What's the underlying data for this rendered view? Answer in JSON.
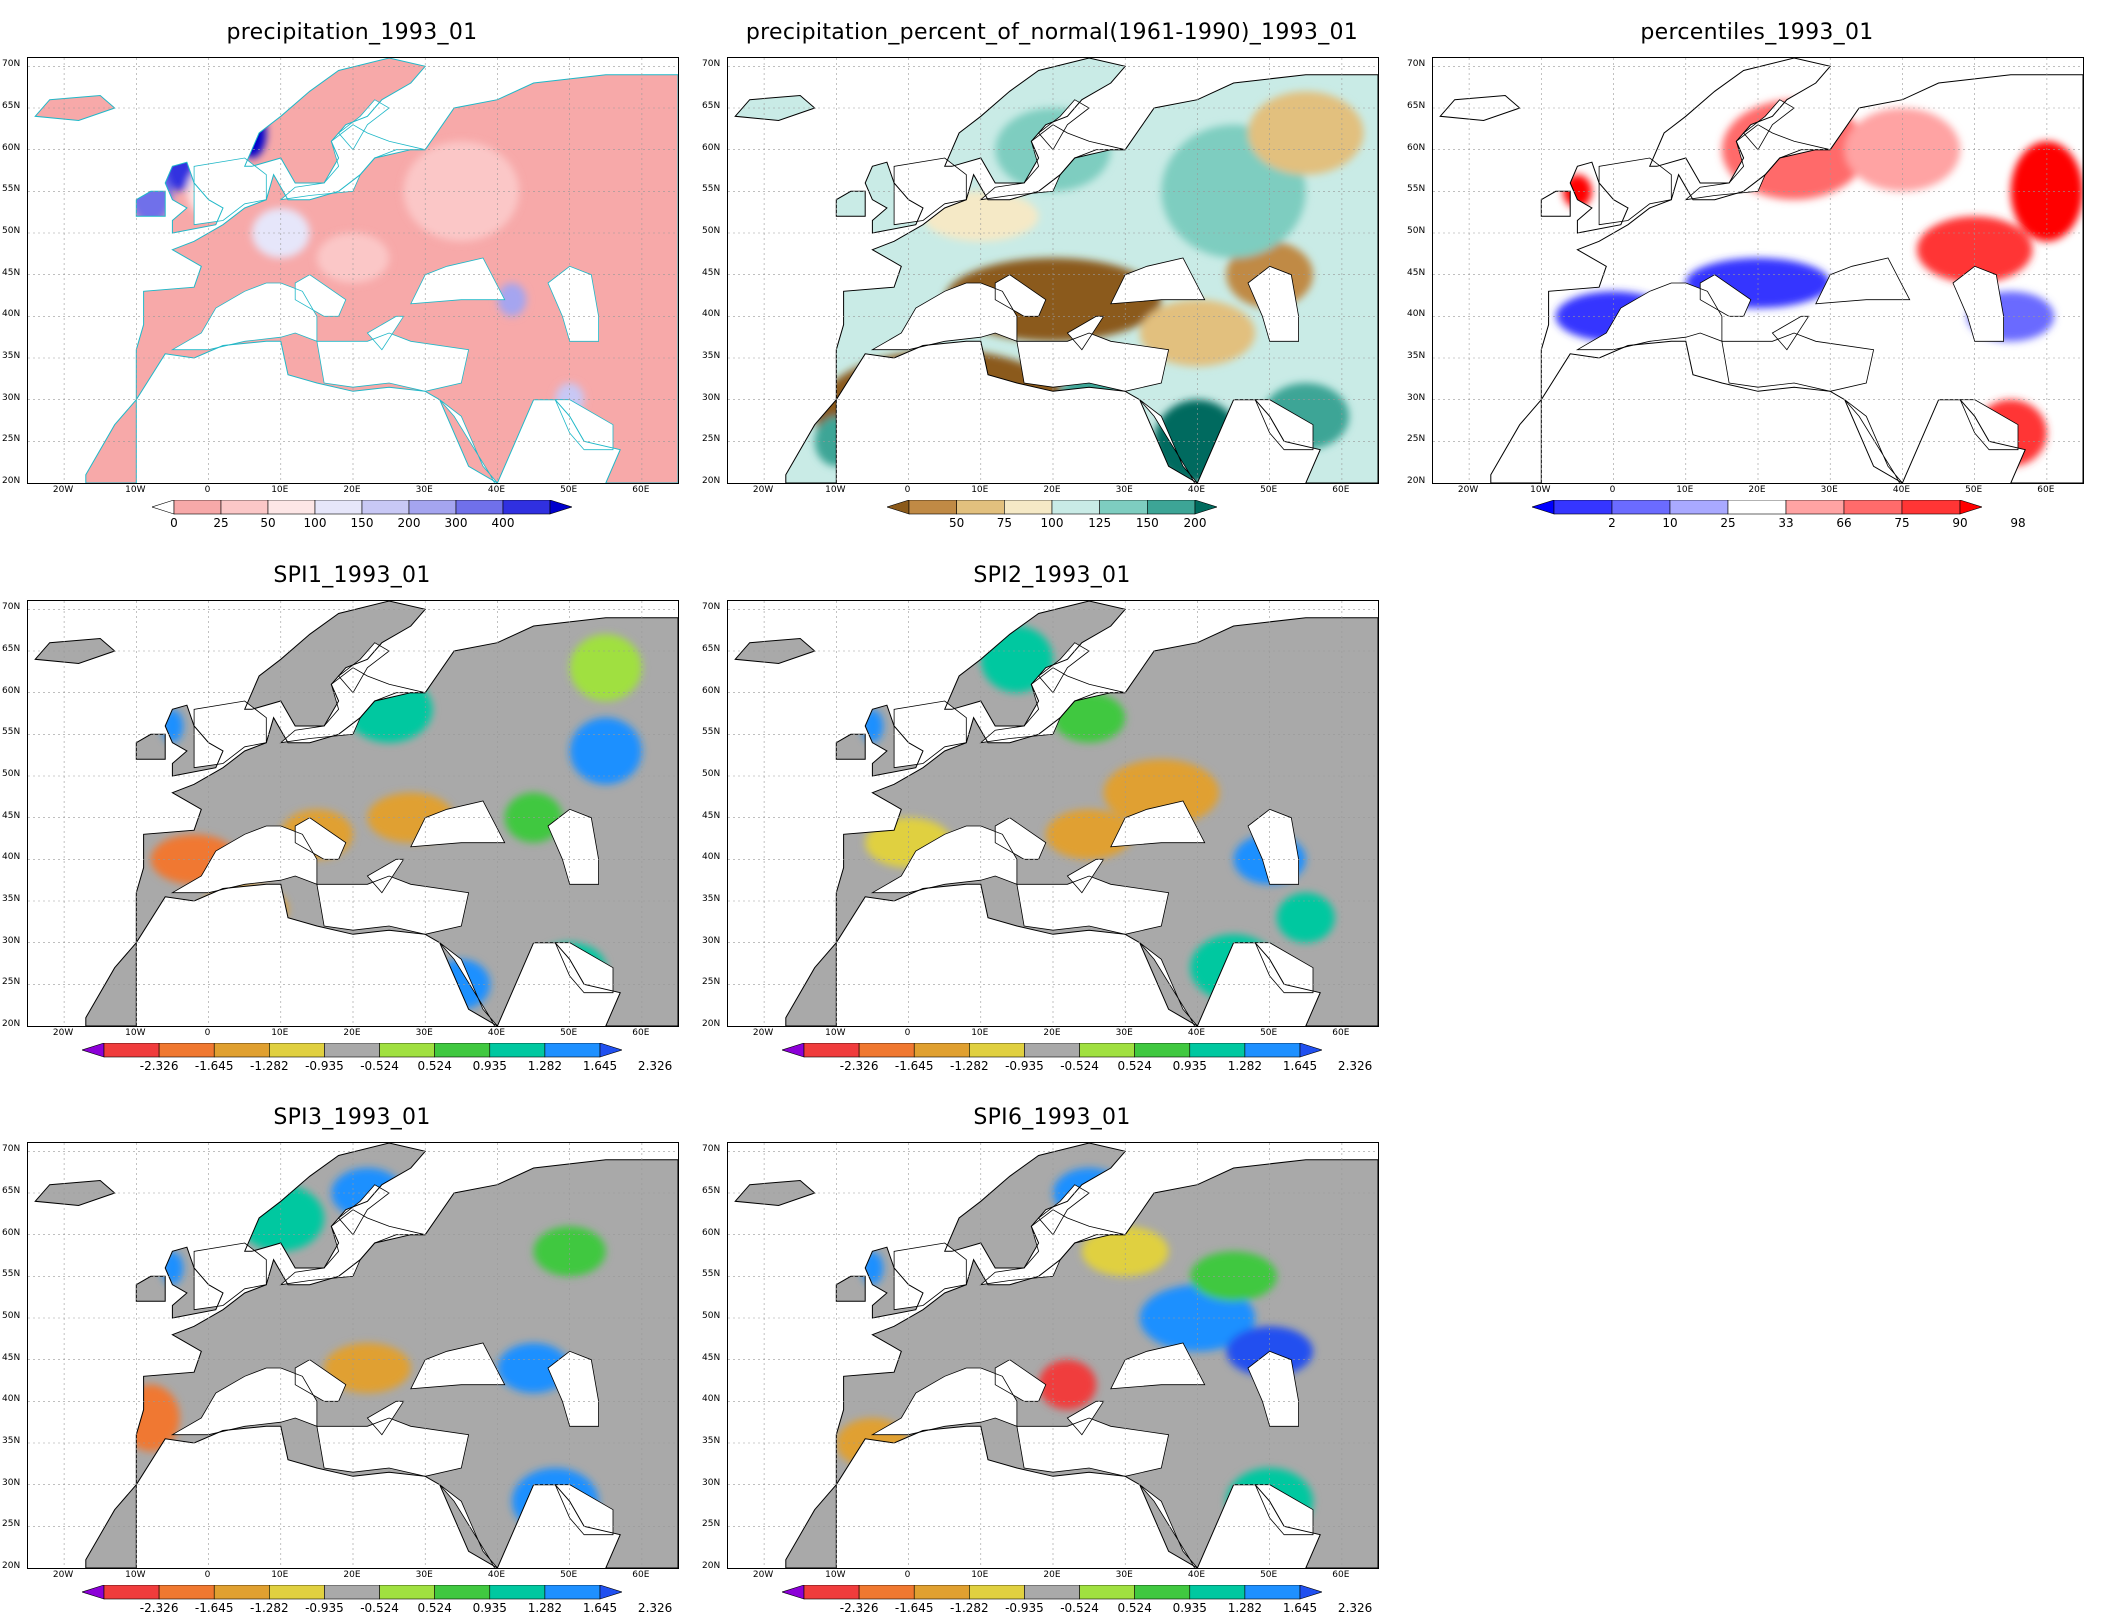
{
  "lat_labels": [
    "70N",
    "65N",
    "60N",
    "55N",
    "50N",
    "45N",
    "40N",
    "35N",
    "30N",
    "25N",
    "20N"
  ],
  "lon_labels": [
    "20W",
    "10W",
    "0",
    "10E",
    "20E",
    "30E",
    "40E",
    "50E",
    "60E"
  ],
  "panels": [
    {
      "id": "precip",
      "title": "precipitation_1993_01",
      "style": "precip",
      "colorbar": {
        "colors": [
          "#ffffff",
          "#f7a9a9",
          "#fbc7c7",
          "#fde6e6",
          "#e6e6fa",
          "#c8c8f5",
          "#a5a5f0",
          "#7070ea",
          "#3030e0",
          "#0000cc"
        ],
        "labels": [
          "0",
          "25",
          "50",
          "100",
          "150",
          "200",
          "300",
          "400"
        ]
      }
    },
    {
      "id": "pon",
      "title": "precipitation_percent_of_normal(1961-1990)_1993_01",
      "style": "pon",
      "colorbar": {
        "colors": [
          "#8b5a1a",
          "#c08a45",
          "#e2c07e",
          "#f5e9c6",
          "#c9ebe6",
          "#7ecdc0",
          "#3da596",
          "#006b5e"
        ],
        "labels": [
          "50",
          "75",
          "100",
          "125",
          "150",
          "200"
        ]
      }
    },
    {
      "id": "pct",
      "title": "percentiles_1993_01",
      "style": "pct",
      "colorbar": {
        "colors": [
          "#0000ff",
          "#3535ff",
          "#6b6bff",
          "#a9a9ff",
          "#ffffff",
          "#ffa3a3",
          "#ff6b6b",
          "#ff3535",
          "#ff0000"
        ],
        "labels": [
          "2",
          "10",
          "25",
          "33",
          "66",
          "75",
          "90",
          "98"
        ]
      }
    },
    {
      "id": "spi1",
      "title": "SPI1_1993_01",
      "style": "spi",
      "colorbar": {
        "colors": [
          "#8c00d8",
          "#f03c3c",
          "#f07830",
          "#e0a030",
          "#e0d040",
          "#a9a9a9",
          "#a0e040",
          "#40c840",
          "#00c8a0",
          "#1e90ff",
          "#2050f0"
        ],
        "labels": [
          "-2.326",
          "-1.645",
          "-1.282",
          "-0.935",
          "-0.524",
          "0.524",
          "0.935",
          "1.282",
          "1.645",
          "2.326"
        ]
      }
    },
    {
      "id": "spi2",
      "title": "SPI2_1993_01",
      "style": "spi",
      "colorbar": {
        "colors": [
          "#8c00d8",
          "#f03c3c",
          "#f07830",
          "#e0a030",
          "#e0d040",
          "#a9a9a9",
          "#a0e040",
          "#40c840",
          "#00c8a0",
          "#1e90ff",
          "#2050f0"
        ],
        "labels": [
          "-2.326",
          "-1.645",
          "-1.282",
          "-0.935",
          "-0.524",
          "0.524",
          "0.935",
          "1.282",
          "1.645",
          "2.326"
        ]
      }
    },
    {
      "id": "spi3",
      "title": "SPI3_1993_01",
      "style": "spi",
      "colorbar": {
        "colors": [
          "#8c00d8",
          "#f03c3c",
          "#f07830",
          "#e0a030",
          "#e0d040",
          "#a9a9a9",
          "#a0e040",
          "#40c840",
          "#00c8a0",
          "#1e90ff",
          "#2050f0"
        ],
        "labels": [
          "-2.326",
          "-1.645",
          "-1.282",
          "-0.935",
          "-0.524",
          "0.524",
          "0.935",
          "1.282",
          "1.645",
          "2.326"
        ]
      }
    },
    {
      "id": "spi6",
      "title": "SPI6_1993_01",
      "style": "spi",
      "colorbar": {
        "colors": [
          "#8c00d8",
          "#f03c3c",
          "#f07830",
          "#e0a030",
          "#e0d040",
          "#a9a9a9",
          "#a0e040",
          "#40c840",
          "#00c8a0",
          "#1e90ff",
          "#2050f0"
        ],
        "labels": [
          "-2.326",
          "-1.645",
          "-1.282",
          "-0.935",
          "-0.524",
          "0.524",
          "0.935",
          "1.282",
          "1.645",
          "2.326"
        ]
      }
    }
  ]
}
